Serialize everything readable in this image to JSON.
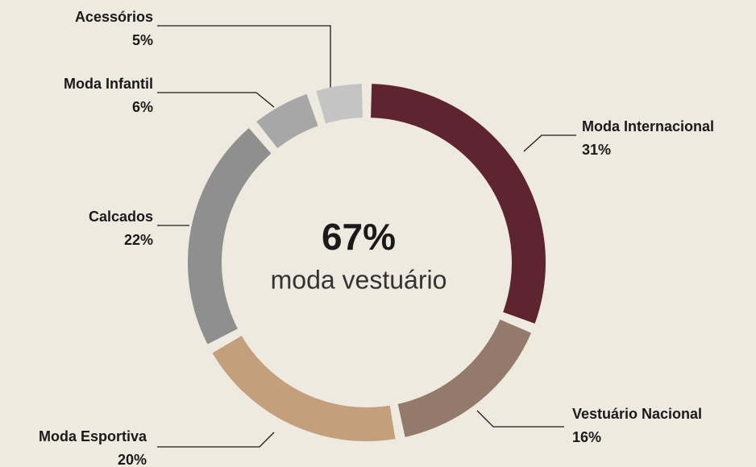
{
  "chart_data": {
    "type": "donut",
    "center_value": "67%",
    "center_label": "moda vestuário",
    "categories": [
      "Moda Internacional",
      "Vestuário Nacional",
      "Moda Esportiva",
      "Calcados",
      "Moda Infantil",
      "Acessórios"
    ],
    "values": [
      31,
      16,
      20,
      22,
      6,
      5
    ],
    "value_labels": [
      "31%",
      "16%",
      "20%",
      "22%",
      "6%",
      "5%"
    ],
    "colors": [
      "#5e2530",
      "#947a6a",
      "#c49f7b",
      "#8f8f8f",
      "#a7a7a7",
      "#c4c4c4"
    ]
  }
}
